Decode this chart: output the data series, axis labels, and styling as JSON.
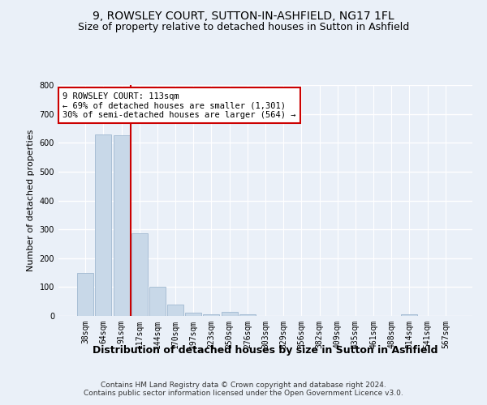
{
  "title1": "9, ROWSLEY COURT, SUTTON-IN-ASHFIELD, NG17 1FL",
  "title2": "Size of property relative to detached houses in Sutton in Ashfield",
  "xlabel": "Distribution of detached houses by size in Sutton in Ashfield",
  "ylabel": "Number of detached properties",
  "footer": "Contains HM Land Registry data © Crown copyright and database right 2024.\nContains public sector information licensed under the Open Government Licence v3.0.",
  "categories": [
    "38sqm",
    "64sqm",
    "91sqm",
    "117sqm",
    "144sqm",
    "170sqm",
    "197sqm",
    "223sqm",
    "250sqm",
    "276sqm",
    "303sqm",
    "329sqm",
    "356sqm",
    "382sqm",
    "409sqm",
    "435sqm",
    "461sqm",
    "488sqm",
    "514sqm",
    "541sqm",
    "567sqm"
  ],
  "values": [
    150,
    630,
    625,
    285,
    100,
    40,
    10,
    5,
    15,
    5,
    0,
    0,
    0,
    0,
    0,
    0,
    0,
    0,
    5,
    0,
    0
  ],
  "bar_color": "#c8d8e8",
  "bar_edge_color": "#a0b8d0",
  "red_line_index": 3,
  "annotation_text": "9 ROWSLEY COURT: 113sqm\n← 69% of detached houses are smaller (1,301)\n30% of semi-detached houses are larger (564) →",
  "annotation_box_color": "#ffffff",
  "annotation_box_edge": "#cc0000",
  "red_line_color": "#cc0000",
  "ylim": [
    0,
    800
  ],
  "yticks": [
    0,
    100,
    200,
    300,
    400,
    500,
    600,
    700,
    800
  ],
  "background_color": "#eaf0f8",
  "grid_color": "#ffffff",
  "title1_fontsize": 10,
  "title2_fontsize": 9,
  "xlabel_fontsize": 9,
  "ylabel_fontsize": 8,
  "tick_fontsize": 7,
  "annotation_fontsize": 7.5,
  "footer_fontsize": 6.5
}
